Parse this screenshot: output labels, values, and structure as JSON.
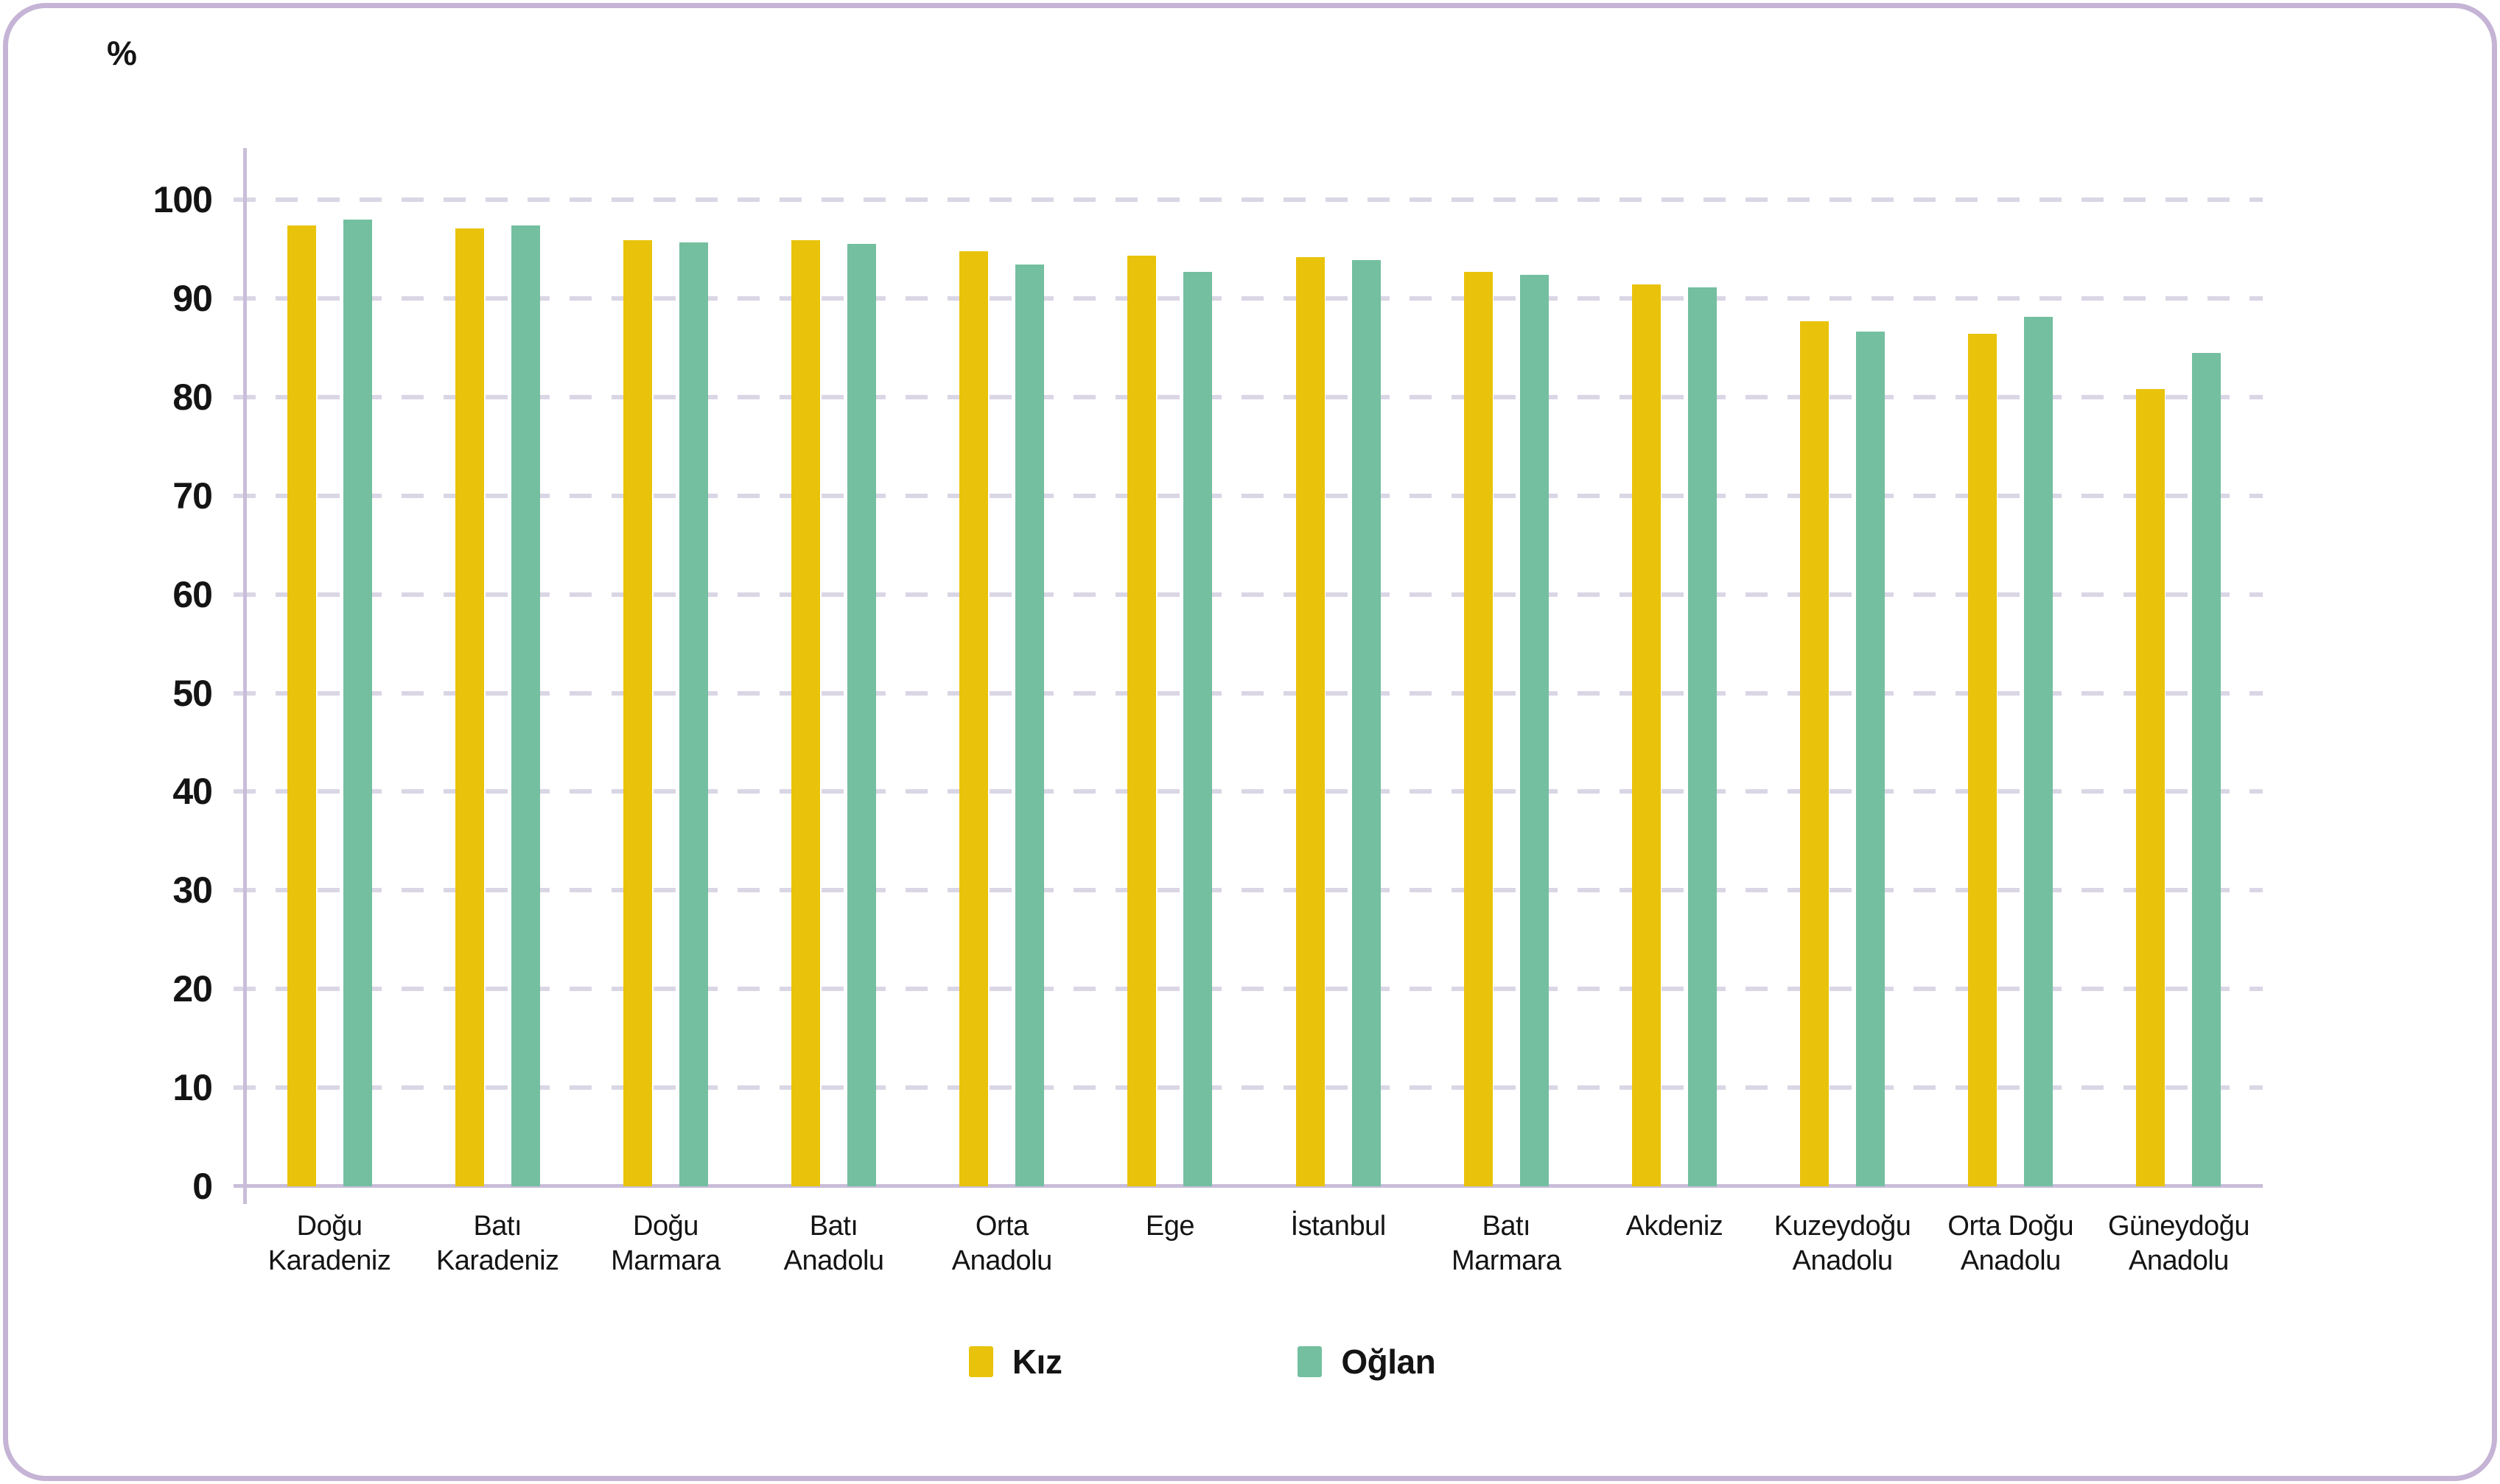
{
  "style": {
    "frame_border_color": "#C5B4D5",
    "axis_color": "#C9BDD9",
    "gridline_color": "#DBD6E5",
    "text_color": "#141414",
    "background": "#FFFFFF"
  },
  "chart_data": {
    "type": "bar",
    "title": "",
    "ylabel": "%",
    "xlabel": "",
    "ylim": [
      0,
      100
    ],
    "yticks": [
      0,
      10,
      20,
      30,
      40,
      50,
      60,
      70,
      80,
      90,
      100
    ],
    "grid": "horizontal-dashed",
    "legend_position": "bottom",
    "categories": [
      "Doğu Karadeniz",
      "Batı Karadeniz",
      "Doğu Marmara",
      "Batı Anadolu",
      "Orta Anadolu",
      "Ege",
      "İstanbul",
      "Batı Marmara",
      "Akdeniz",
      "Kuzeydoğu Anadolu",
      "Orta Doğu Anadolu",
      "Güneydoğu Anadolu"
    ],
    "category_label_lines": [
      [
        "Doğu",
        "Karadeniz"
      ],
      [
        "Batı",
        "Karadeniz"
      ],
      [
        "Doğu",
        "Marmara"
      ],
      [
        "Batı",
        "Anadolu"
      ],
      [
        "Orta",
        "Anadolu"
      ],
      [
        "Ege",
        ""
      ],
      [
        "İstanbul",
        ""
      ],
      [
        "Batı",
        "Marmara"
      ],
      [
        "Akdeniz",
        ""
      ],
      [
        "Kuzeydoğu",
        "Anadolu"
      ],
      [
        "Orta Doğu",
        "Anadolu"
      ],
      [
        "Güneydoğu",
        "Anadolu"
      ]
    ],
    "series": [
      {
        "name": "Kız",
        "color": "#E9C30B",
        "values": [
          97.4,
          97.1,
          95.9,
          95.9,
          94.8,
          94.3,
          94.2,
          92.7,
          91.4,
          87.7,
          86.4,
          80.8
        ]
      },
      {
        "name": "Oğlan",
        "color": "#73BF9F",
        "values": [
          98.0,
          97.4,
          95.7,
          95.5,
          93.4,
          92.7,
          93.9,
          92.4,
          91.1,
          86.6,
          88.1,
          84.5
        ]
      }
    ]
  }
}
